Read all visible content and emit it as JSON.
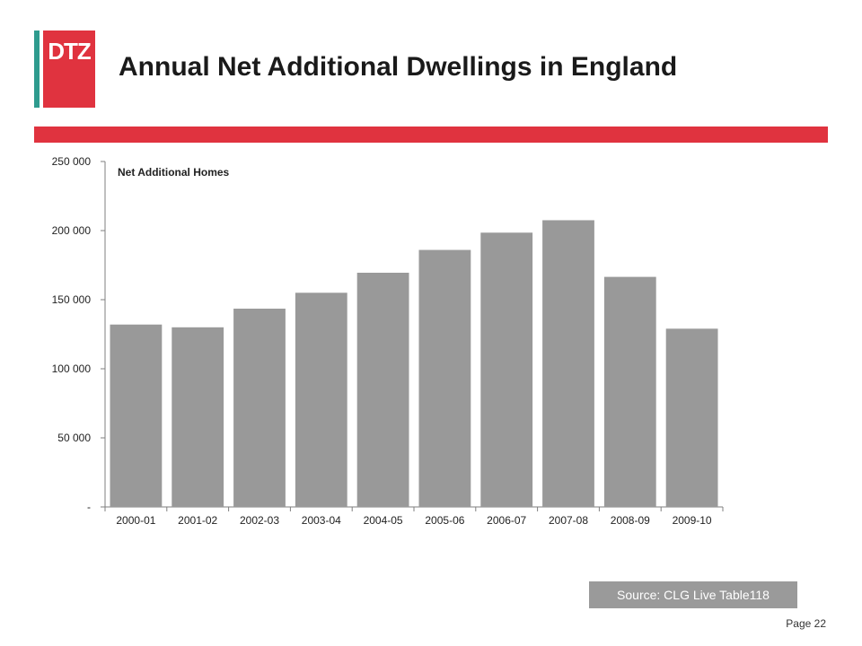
{
  "header": {
    "logo_text": "DTZ",
    "title": "Annual Net Additional Dwellings in England"
  },
  "colors": {
    "accent_red": "#e0333f",
    "accent_teal": "#2e9b8e",
    "bar_fill": "#999999",
    "source_bg": "#9a9a9a"
  },
  "chart_data": {
    "type": "bar",
    "title": "",
    "series_label": "Net Additional Homes",
    "categories": [
      "2000-01",
      "2001-02",
      "2002-03",
      "2003-04",
      "2004-05",
      "2005-06",
      "2006-07",
      "2007-08",
      "2008-09",
      "2009-10"
    ],
    "values": [
      132000,
      130000,
      143500,
      155000,
      169500,
      186000,
      198500,
      207500,
      166500,
      129000
    ],
    "ylim": [
      0,
      250000
    ],
    "yticks": [
      0,
      50000,
      100000,
      150000,
      200000,
      250000
    ],
    "ytick_labels": [
      "-",
      "50 000",
      "100 000",
      "150 000",
      "200 000",
      "250 000"
    ],
    "xlabel": "",
    "ylabel": "",
    "grid": false,
    "legend": "none"
  },
  "footer": {
    "source": "Source: CLG Live Table118",
    "page": "Page 22"
  }
}
